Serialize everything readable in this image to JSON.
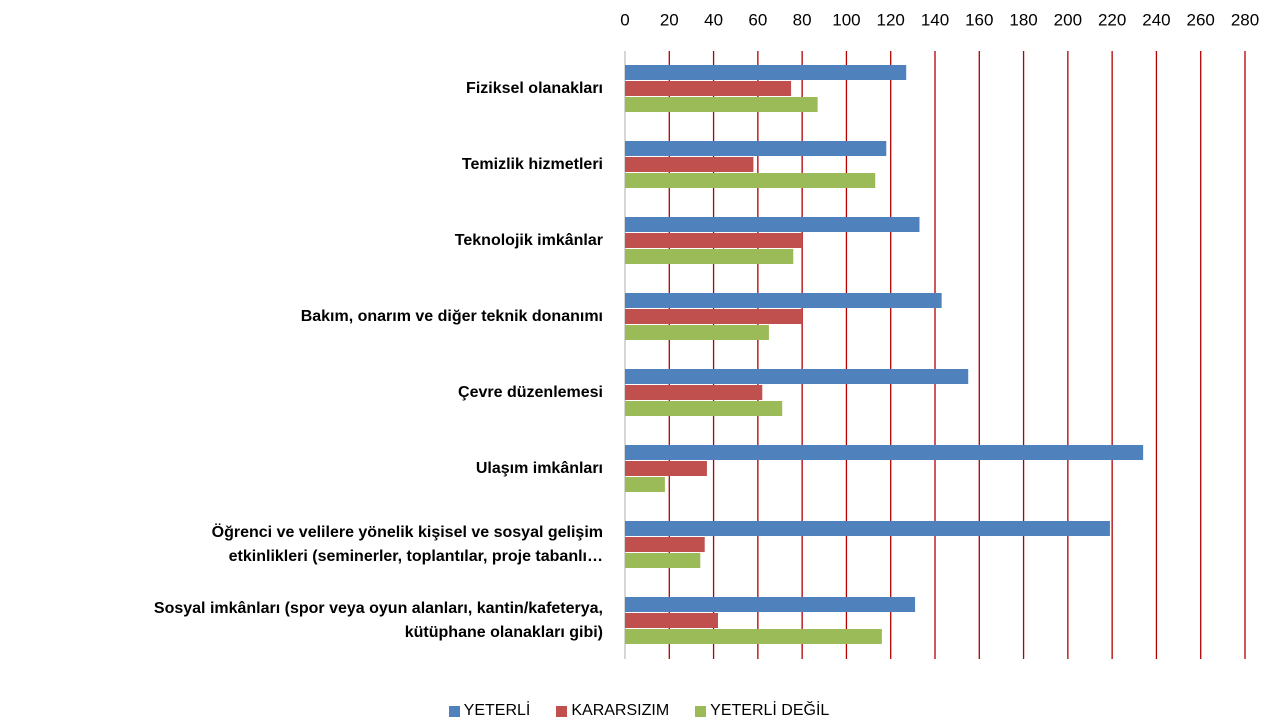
{
  "chart_data": {
    "type": "hbar",
    "categories": [
      "Fiziksel olanakları",
      "Temizlik hizmetleri",
      "Teknolojik imkânlar",
      "Bakım, onarım ve diğer teknik donanımı",
      "Çevre düzenlemesi",
      "Ulaşım imkânları",
      "Öğrenci ve velilere yönelik kişisel ve sosyal gelişim\netkinlikleri (seminerler, toplantılar, proje tabanlı…",
      "Sosyal imkânları (spor veya oyun alanları, kantin/kafeterya,\nkütüphane olanakları gibi)"
    ],
    "series": [
      {
        "name": "YETERLİ",
        "color": "#4f81bd",
        "values": [
          127,
          118,
          133,
          143,
          155,
          234,
          219,
          131
        ]
      },
      {
        "name": "KARARSIZIM",
        "color": "#c0504d",
        "values": [
          75,
          58,
          80,
          80,
          62,
          37,
          36,
          42
        ]
      },
      {
        "name": "YETERLİ DEĞİL",
        "color": "#9bbb59",
        "values": [
          87,
          113,
          76,
          65,
          71,
          18,
          34,
          116
        ]
      }
    ],
    "xlim": [
      0,
      280
    ],
    "xticks": [
      0,
      20,
      40,
      60,
      80,
      100,
      120,
      140,
      160,
      180,
      200,
      220,
      240,
      260,
      280
    ],
    "grid": true,
    "grid_color": "#b00000",
    "legend": "bottom"
  }
}
